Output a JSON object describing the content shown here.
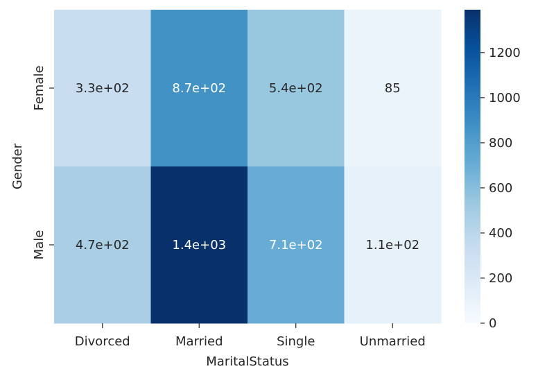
{
  "chart_data": {
    "type": "heatmap",
    "title": "",
    "xlabel": "MaritalStatus",
    "ylabel": "Gender",
    "x_categories": [
      "Divorced",
      "Married",
      "Single",
      "Unmarried"
    ],
    "y_categories": [
      "Female",
      "Male"
    ],
    "values": [
      [
        330,
        870,
        540,
        85
      ],
      [
        470,
        1390,
        710,
        110
      ]
    ],
    "cell_labels": [
      [
        "3.3e+02",
        "8.7e+02",
        "5.4e+02",
        "85"
      ],
      [
        "4.7e+02",
        "1.4e+03",
        "7.1e+02",
        "1.1e+02"
      ]
    ],
    "colormap": "Blues",
    "color_low": "#f7fbff",
    "color_high": "#08306b",
    "colorbar": {
      "range": [
        0,
        1390
      ],
      "ticks": [
        0,
        200,
        400,
        600,
        800,
        1000,
        1200
      ],
      "tick_labels": [
        "0",
        "200",
        "400",
        "600",
        "800",
        "1000",
        "1200"
      ]
    },
    "grid": false
  }
}
